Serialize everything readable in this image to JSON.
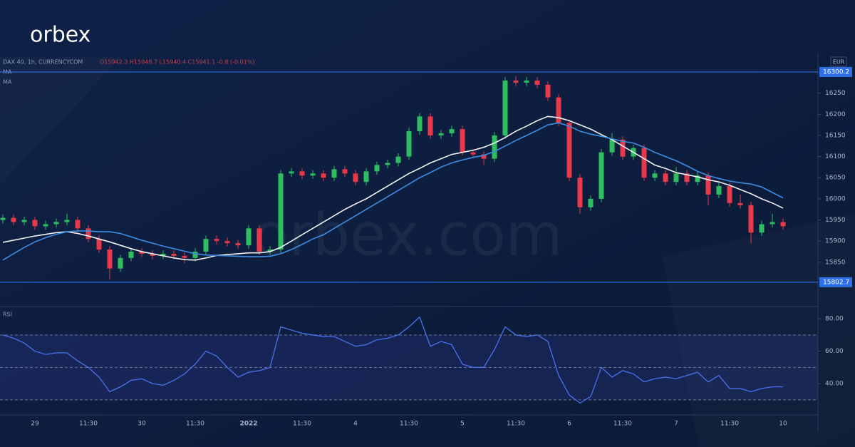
{
  "brand": "orbex",
  "watermark": "orbex.com",
  "chart_data": [
    {
      "type": "candlestick",
      "title": "DAX 40, 1h, CURRENCYCOM",
      "subtitle": "O15942.3 H15948.7 L15940.4 C15941.1 -0.8 (-0.01%)",
      "currency": "EUR",
      "up_color": "#2ebd5f",
      "down_color": "#e8394a",
      "categories": [
        null,
        null,
        null,
        "29",
        null,
        null,
        null,
        null,
        "11:30",
        null,
        null,
        null,
        null,
        "30",
        null,
        null,
        null,
        null,
        "11:30",
        null,
        null,
        null,
        null,
        "2022",
        null,
        null,
        null,
        null,
        "11:30",
        null,
        null,
        null,
        null,
        "4",
        null,
        null,
        null,
        null,
        "11:30",
        null,
        null,
        null,
        null,
        "5",
        null,
        null,
        null,
        null,
        "11:30",
        null,
        null,
        null,
        null,
        "6",
        null,
        null,
        null,
        null,
        "11:30",
        null,
        null,
        null,
        null,
        "7",
        null,
        null,
        null,
        null,
        "11:30",
        null,
        null,
        null,
        null,
        "10"
      ],
      "ohlc": [
        [
          15950,
          15963,
          15942,
          15955
        ],
        [
          15955,
          15963,
          15937,
          15945
        ],
        [
          15945,
          15958,
          15937,
          15950
        ],
        [
          15950,
          15958,
          15927,
          15935
        ],
        [
          15935,
          15948,
          15927,
          15940
        ],
        [
          15940,
          15953,
          15932,
          15945
        ],
        [
          15945,
          15965,
          15937,
          15950
        ],
        [
          15950,
          15958,
          15922,
          15930
        ],
        [
          15930,
          15938,
          15897,
          15905
        ],
        [
          15905,
          15913,
          15872,
          15880
        ],
        [
          15880,
          15888,
          15810,
          15835
        ],
        [
          15835,
          15868,
          15827,
          15860
        ],
        [
          15860,
          15883,
          15852,
          15875
        ],
        [
          15875,
          15883,
          15862,
          15870
        ],
        [
          15870,
          15878,
          15857,
          15865
        ],
        [
          15865,
          15878,
          15857,
          15870
        ],
        [
          15870,
          15878,
          15857,
          15865
        ],
        [
          15865,
          15873,
          15848,
          15860
        ],
        [
          15860,
          15883,
          15852,
          15875
        ],
        [
          15875,
          15913,
          15867,
          15905
        ],
        [
          15905,
          15913,
          15892,
          15900
        ],
        [
          15900,
          15908,
          15887,
          15895
        ],
        [
          15895,
          15903,
          15882,
          15890
        ],
        [
          15890,
          15938,
          15882,
          15930
        ],
        [
          15930,
          15938,
          15867,
          15875
        ],
        [
          15875,
          15888,
          15867,
          15880
        ],
        [
          15880,
          16068,
          15872,
          16060
        ],
        [
          16060,
          16073,
          16052,
          16065
        ],
        [
          16065,
          16073,
          16047,
          16055
        ],
        [
          16055,
          16068,
          16047,
          16060
        ],
        [
          16060,
          16068,
          16042,
          16050
        ],
        [
          16050,
          16078,
          16042,
          16070
        ],
        [
          16070,
          16078,
          16052,
          16060
        ],
        [
          16060,
          16068,
          16032,
          16040
        ],
        [
          16040,
          16073,
          16032,
          16065
        ],
        [
          16065,
          16088,
          16057,
          16080
        ],
        [
          16080,
          16093,
          16072,
          16085
        ],
        [
          16085,
          16108,
          16077,
          16100
        ],
        [
          16100,
          16168,
          16092,
          16160
        ],
        [
          16160,
          16203,
          16152,
          16195
        ],
        [
          16195,
          16203,
          16142,
          16150
        ],
        [
          16150,
          16163,
          16142,
          16155
        ],
        [
          16155,
          16173,
          16147,
          16165
        ],
        [
          16165,
          16173,
          16102,
          16110
        ],
        [
          16110,
          16118,
          16097,
          16105
        ],
        [
          16105,
          16113,
          16080,
          16095
        ],
        [
          16095,
          16158,
          16087,
          16150
        ],
        [
          16150,
          16288,
          16142,
          16280
        ],
        [
          16280,
          16290,
          16267,
          16275
        ],
        [
          16275,
          16288,
          16267,
          16280
        ],
        [
          16280,
          16288,
          16262,
          16270
        ],
        [
          16270,
          16278,
          16232,
          16240
        ],
        [
          16240,
          16248,
          16172,
          16180
        ],
        [
          16180,
          16188,
          16042,
          16050
        ],
        [
          16050,
          16058,
          15965,
          15980
        ],
        [
          15980,
          16008,
          15972,
          16000
        ],
        [
          16000,
          16118,
          15992,
          16110
        ],
        [
          16110,
          16155,
          16102,
          16140
        ],
        [
          16140,
          16148,
          16092,
          16100
        ],
        [
          16100,
          16128,
          16092,
          16120
        ],
        [
          16120,
          16128,
          16042,
          16050
        ],
        [
          16050,
          16068,
          16042,
          16060
        ],
        [
          16060,
          16068,
          16032,
          16040
        ],
        [
          16040,
          16075,
          16032,
          16060
        ],
        [
          16060,
          16068,
          16032,
          16040
        ],
        [
          16040,
          16063,
          16032,
          16055
        ],
        [
          16055,
          16063,
          15985,
          16010
        ],
        [
          16010,
          16038,
          16002,
          16030
        ],
        [
          16030,
          16038,
          15982,
          15990
        ],
        [
          15990,
          16010,
          15977,
          15985
        ],
        [
          15985,
          15993,
          15895,
          15920
        ],
        [
          15920,
          15948,
          15912,
          15940
        ],
        [
          15940,
          15965,
          15932,
          15945
        ],
        [
          15945,
          15953,
          15927,
          15935
        ]
      ],
      "series": [
        {
          "name": "MA",
          "color": "#f2f2f2",
          "values": [
            15897,
            15902,
            15907,
            15912,
            15916,
            15920,
            15922,
            15918,
            15912,
            15905,
            15898,
            15890,
            15882,
            15875,
            15870,
            15865,
            15860,
            15856,
            15855,
            15860,
            15866,
            15868,
            15870,
            15872,
            15872,
            15875,
            15885,
            15900,
            15915,
            15930,
            15945,
            15960,
            15975,
            15988,
            16000,
            16015,
            16030,
            16045,
            16060,
            16072,
            16085,
            16095,
            16105,
            16110,
            16115,
            16122,
            16132,
            16145,
            16160,
            16172,
            16185,
            16195,
            16192,
            16185,
            16175,
            16165,
            16152,
            16140,
            16125,
            16110,
            16095,
            16080,
            16072,
            16062,
            16057,
            16052,
            16045,
            16040,
            16032,
            16022,
            16012,
            16000,
            15990,
            15978
          ]
        },
        {
          "name": "MA",
          "color": "#3a8ee6",
          "values": [
            15855,
            15870,
            15885,
            15898,
            15908,
            15916,
            15922,
            15924,
            15924,
            15922,
            15922,
            15918,
            15910,
            15902,
            15895,
            15888,
            15882,
            15876,
            15870,
            15867,
            15866,
            15865,
            15864,
            15863,
            15863,
            15864,
            15870,
            15880,
            15892,
            15905,
            15915,
            15930,
            15945,
            15960,
            15975,
            15990,
            16005,
            16020,
            16035,
            16050,
            16062,
            16075,
            16085,
            16092,
            16098,
            16103,
            16112,
            16125,
            16138,
            16150,
            16162,
            16175,
            16180,
            16172,
            16160,
            16153,
            16148,
            16142,
            16136,
            16132,
            16122,
            16110,
            16100,
            16090,
            16078,
            16065,
            16055,
            16048,
            16042,
            16038,
            16035,
            16028,
            16015,
            16002
          ]
        }
      ],
      "levels": [
        16300.2,
        15802.7
      ],
      "level_color": "#2f6fe8",
      "ylim": [
        15745,
        16344
      ],
      "yticks": [
        15850,
        15900,
        15950,
        16000,
        16050,
        16100,
        16150,
        16200,
        16250
      ]
    },
    {
      "type": "line",
      "title": "RSI",
      "series": [
        {
          "name": "RSI",
          "color": "#4a72ee",
          "values": [
            70,
            68,
            65,
            60,
            58,
            59,
            59,
            54,
            50,
            44,
            35,
            38,
            42,
            43,
            40,
            39,
            42,
            46,
            52,
            60,
            57,
            50,
            44,
            47,
            48,
            50,
            75,
            73,
            71,
            70,
            69,
            69,
            66,
            63,
            64,
            67,
            68,
            70,
            75,
            81,
            63,
            66,
            64,
            52,
            50,
            50,
            61,
            75,
            70,
            69,
            70,
            66,
            45,
            33,
            28,
            32,
            50,
            44,
            48,
            46,
            41,
            43,
            44,
            43,
            45,
            47,
            41,
            45,
            37,
            37,
            35,
            37,
            38,
            38
          ]
        }
      ],
      "band": [
        30,
        70
      ],
      "reference_lines": [
        30,
        50,
        70
      ],
      "ylim": [
        20.7,
        87.5
      ],
      "yticks": [
        {
          "value": 40,
          "label": "40.00"
        },
        {
          "value": 60,
          "label": "60.00"
        },
        {
          "value": 80,
          "label": "80.00"
        }
      ]
    }
  ]
}
